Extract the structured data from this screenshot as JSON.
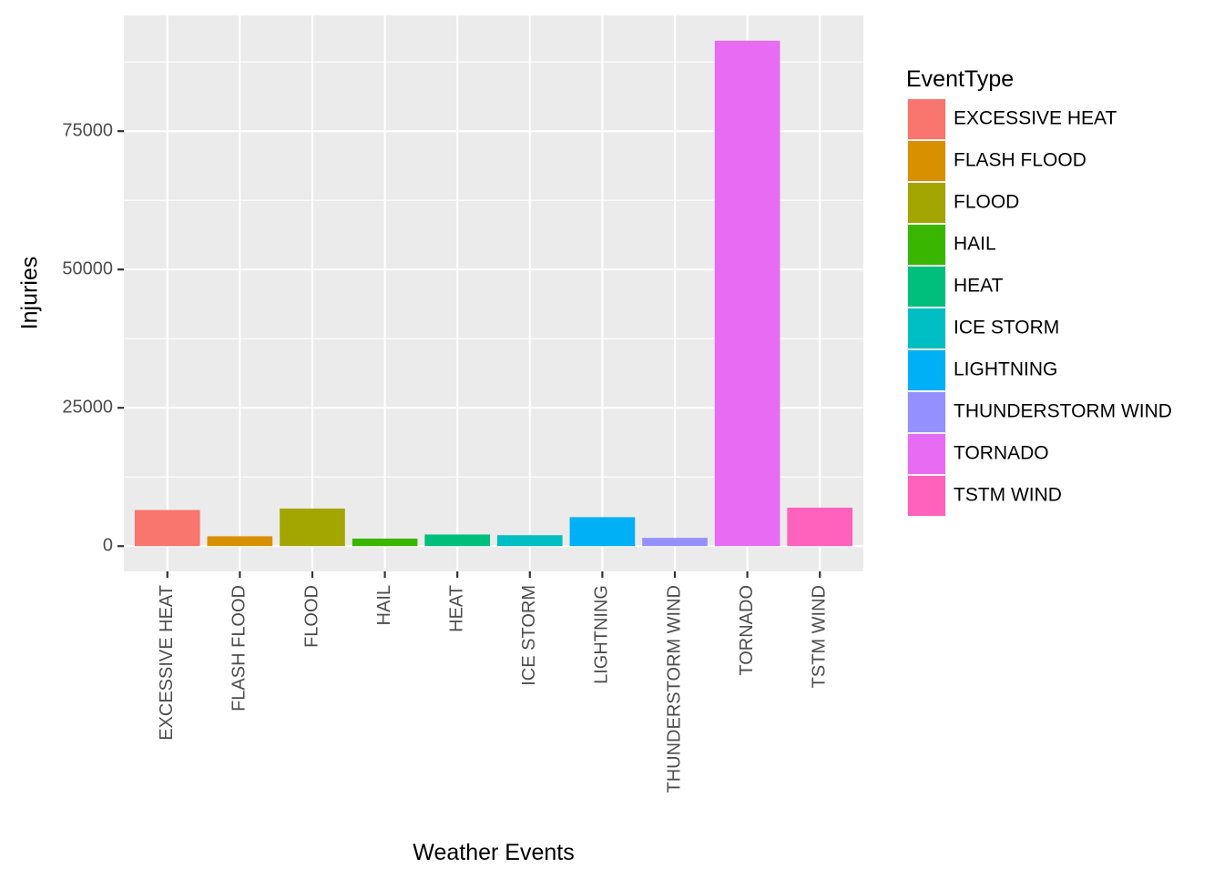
{
  "chart_data": {
    "type": "bar",
    "categories": [
      "EXCESSIVE HEAT",
      "FLASH FLOOD",
      "FLOOD",
      "HAIL",
      "HEAT",
      "ICE STORM",
      "LIGHTNING",
      "THUNDERSTORM WIND",
      "TORNADO",
      "TSTM WIND"
    ],
    "values": [
      6525,
      1777,
      6789,
      1361,
      2100,
      1975,
      5230,
      1488,
      91346,
      6957
    ],
    "colors": [
      "#F8766D",
      "#D89000",
      "#A3A500",
      "#39B600",
      "#00BF7D",
      "#00BFC4",
      "#00B0F6",
      "#9590FF",
      "#E76BF3",
      "#FF62BC"
    ],
    "title": "",
    "xlabel": "Weather Events",
    "ylabel": "Injuries",
    "ylim": [
      -4567,
      95913
    ],
    "yticks": [
      0,
      25000,
      50000,
      75000
    ],
    "ytick_labels": [
      "0",
      "25000",
      "50000",
      "75000"
    ],
    "legend": {
      "title": "EventType",
      "position": "right",
      "entries": [
        "EXCESSIVE HEAT",
        "FLASH FLOOD",
        "FLOOD",
        "HAIL",
        "HEAT",
        "ICE STORM",
        "LIGHTNING",
        "THUNDERSTORM WIND",
        "TORNADO",
        "TSTM WIND"
      ]
    },
    "grid": true,
    "panel_background": "#EBEBEB",
    "grid_color": "#FFFFFF"
  }
}
